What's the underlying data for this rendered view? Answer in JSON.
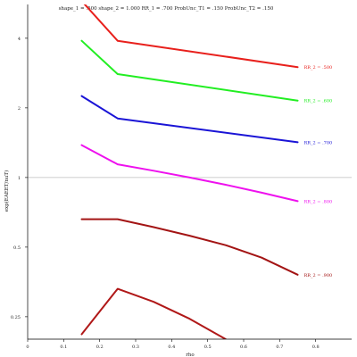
{
  "chart_data": {
    "type": "line",
    "title": "shape_1 = .500  shape_2 = 1.000  RR_1 = .700  ProbUnc_T1 = .150  ProbUnc_T2 = .150",
    "xlabel": "rho",
    "ylabel": "exp(EAEET/nuT)",
    "xlim": [
      0,
      0.9
    ],
    "ylim": [
      0.2,
      5.6
    ],
    "yscale": "log",
    "x_ticks": [
      "0",
      "0.1",
      "0.2",
      "0.3",
      "0.4",
      "0.5",
      "0.6",
      "0.7",
      "0.8"
    ],
    "y_ticks": [
      "0.25",
      "0.5",
      "1",
      "2",
      "4"
    ],
    "reference_line_y": 1,
    "series": [
      {
        "name": "RR_2 = .500",
        "color": "#e8201c",
        "x": [
          0.15,
          0.25,
          0.75
        ],
        "y": [
          5.8,
          3.9,
          3.0
        ]
      },
      {
        "name": "RR_2 = .600",
        "color": "#22ee22",
        "x": [
          0.15,
          0.25,
          0.75
        ],
        "y": [
          3.9,
          2.8,
          2.15
        ]
      },
      {
        "name": "RR_2 = .700",
        "color": "#1a14d6",
        "x": [
          0.15,
          0.25,
          0.75
        ],
        "y": [
          2.25,
          1.8,
          1.42
        ]
      },
      {
        "name": "RR_2 = .800",
        "color": "#ee11ee",
        "x": [
          0.15,
          0.25,
          0.35,
          0.45,
          0.55,
          0.65,
          0.75
        ],
        "y": [
          1.38,
          1.14,
          1.07,
          1.0,
          0.93,
          0.86,
          0.79
        ]
      },
      {
        "name": "RR_2 = .900",
        "color": "#a31414",
        "x": [
          0.15,
          0.25,
          0.35,
          0.45,
          0.55,
          0.65,
          0.75
        ],
        "y": [
          0.66,
          0.66,
          0.61,
          0.56,
          0.51,
          0.45,
          0.38
        ]
      },
      {
        "name": "",
        "color": "#b01818",
        "x": [
          0.15,
          0.25,
          0.35,
          0.45,
          0.55
        ],
        "y": [
          0.21,
          0.33,
          0.29,
          0.245,
          0.2
        ]
      }
    ]
  }
}
